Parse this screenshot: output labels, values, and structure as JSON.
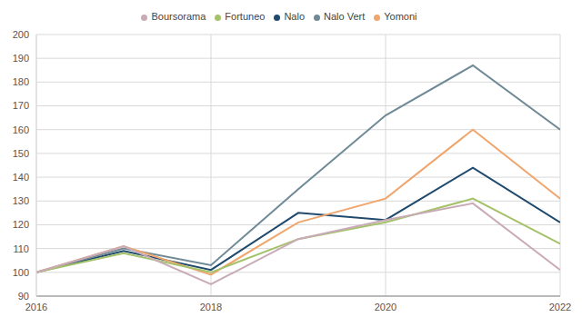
{
  "chart_data": {
    "type": "line",
    "x": [
      2016,
      2017,
      2018,
      2019,
      2020,
      2021,
      2022
    ],
    "series": [
      {
        "name": "Nalo",
        "color": "#1f4a6e",
        "values": [
          100,
          109,
          101,
          125,
          122,
          144,
          121
        ]
      },
      {
        "name": "Nalo Vert",
        "color": "#6f8a96",
        "values": [
          100,
          110,
          103,
          135,
          166,
          187,
          160
        ]
      },
      {
        "name": "Yomoni",
        "color": "#f0a56c",
        "values": [
          100,
          111,
          99,
          121,
          131,
          160,
          131
        ]
      },
      {
        "name": "Fortuneo",
        "color": "#a5c26b",
        "values": [
          100,
          108,
          100,
          114,
          121,
          131,
          112
        ]
      },
      {
        "name": "Boursorama",
        "color": "#c9abb8",
        "values": [
          100,
          111,
          95,
          114,
          122,
          129,
          101
        ]
      }
    ],
    "xlim": [
      2016,
      2022
    ],
    "xticks": [
      2016,
      2018,
      2020,
      2022
    ],
    "ylim": [
      90,
      200
    ],
    "yticks": [
      90,
      100,
      110,
      120,
      130,
      140,
      150,
      160,
      170,
      180,
      190,
      200
    ],
    "grid": true,
    "legend": "top"
  }
}
